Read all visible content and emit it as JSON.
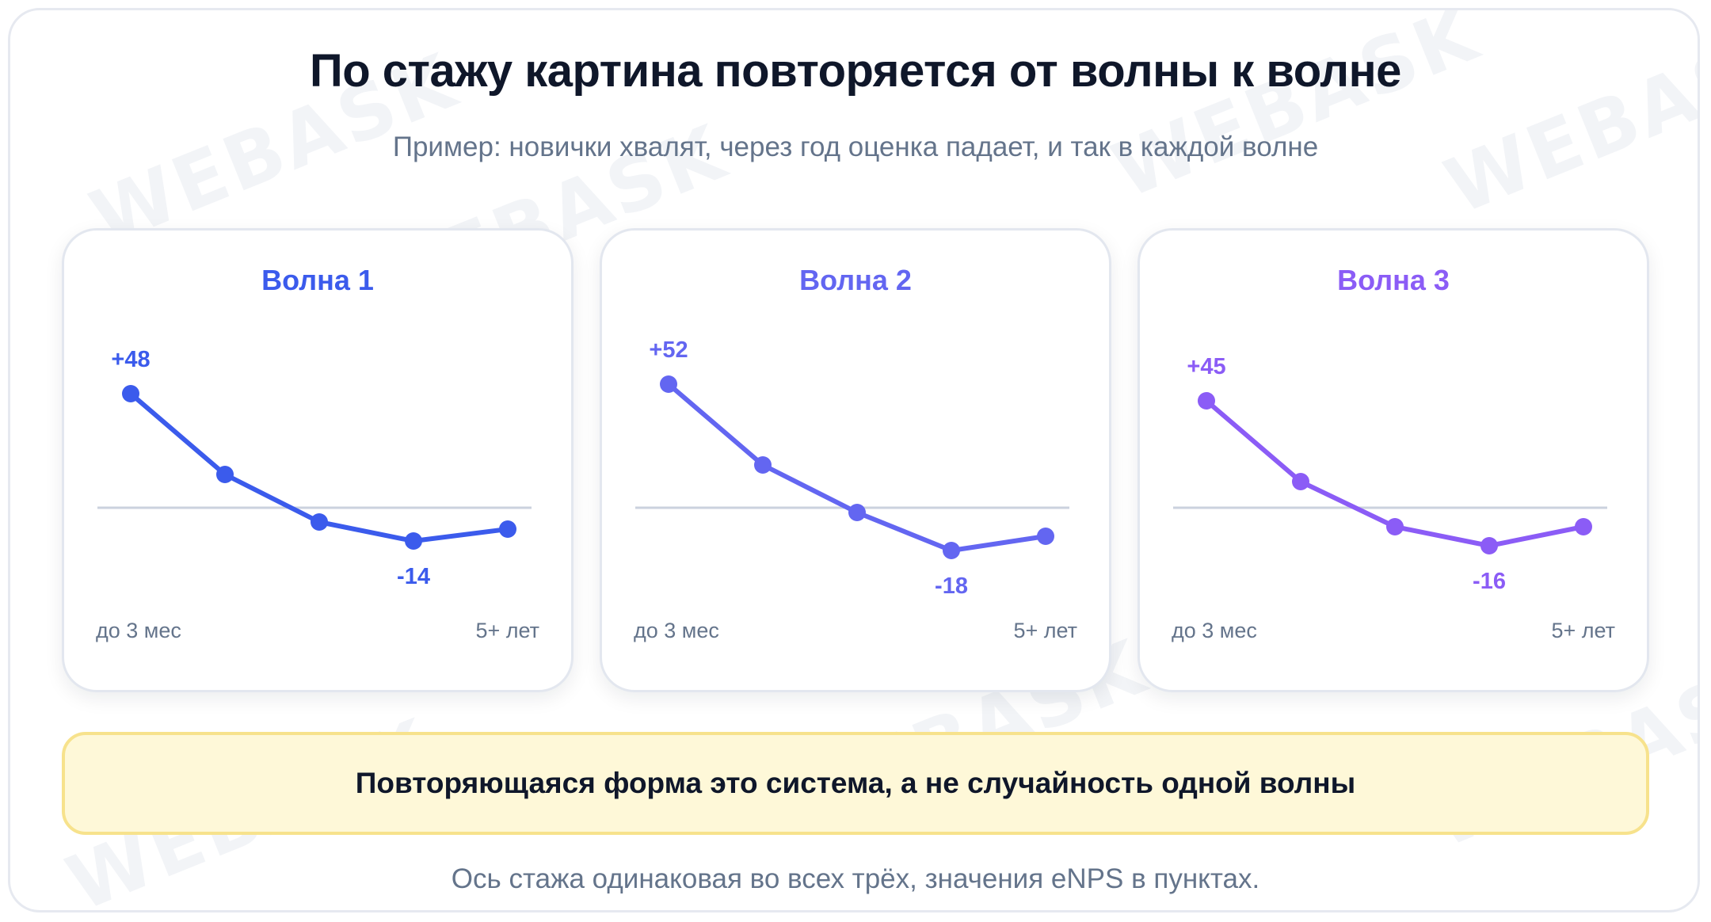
{
  "title": "По стажу картина повторяется от волны к волне",
  "subtitle": "Пример: новички хвалят, через год оценка падает, и так в каждой волне",
  "watermark": "WEBASK",
  "colors": {
    "wave1": "#3b5bec",
    "wave2": "#6366f1",
    "wave3": "#8b5cf6",
    "baseline": "#cbd2de",
    "text_muted": "#64748b",
    "callout_bg": "#fef8d8",
    "callout_border": "#f7e28c"
  },
  "callout": "Повторяющаяся форма это система, а не случайность одной волны",
  "footnote": "Ось стажа одинаковая во всех трёх, значения eNPS в пунктах.",
  "chart_data": [
    {
      "type": "line",
      "title": "Волна 1",
      "color": "#3b5bec",
      "x_start_label": "до 3 мес",
      "x_end_label": "5+ лет",
      "values": [
        48,
        14,
        -6,
        -14,
        -9
      ],
      "labels": [
        "+48",
        null,
        null,
        "-14",
        null
      ],
      "ylim": [
        -40,
        60
      ],
      "baseline": 0
    },
    {
      "type": "line",
      "title": "Волна 2",
      "color": "#6366f1",
      "x_start_label": "до 3 мес",
      "x_end_label": "5+ лет",
      "values": [
        52,
        18,
        -2,
        -18,
        -12
      ],
      "labels": [
        "+52",
        null,
        null,
        "-18",
        null
      ],
      "ylim": [
        -40,
        60
      ],
      "baseline": 0
    },
    {
      "type": "line",
      "title": "Волна 3",
      "color": "#8b5cf6",
      "x_start_label": "до 3 мес",
      "x_end_label": "5+ лет",
      "values": [
        45,
        11,
        -8,
        -16,
        -8
      ],
      "labels": [
        "+45",
        null,
        null,
        "-16",
        null
      ],
      "ylim": [
        -40,
        60
      ],
      "baseline": 0
    }
  ]
}
